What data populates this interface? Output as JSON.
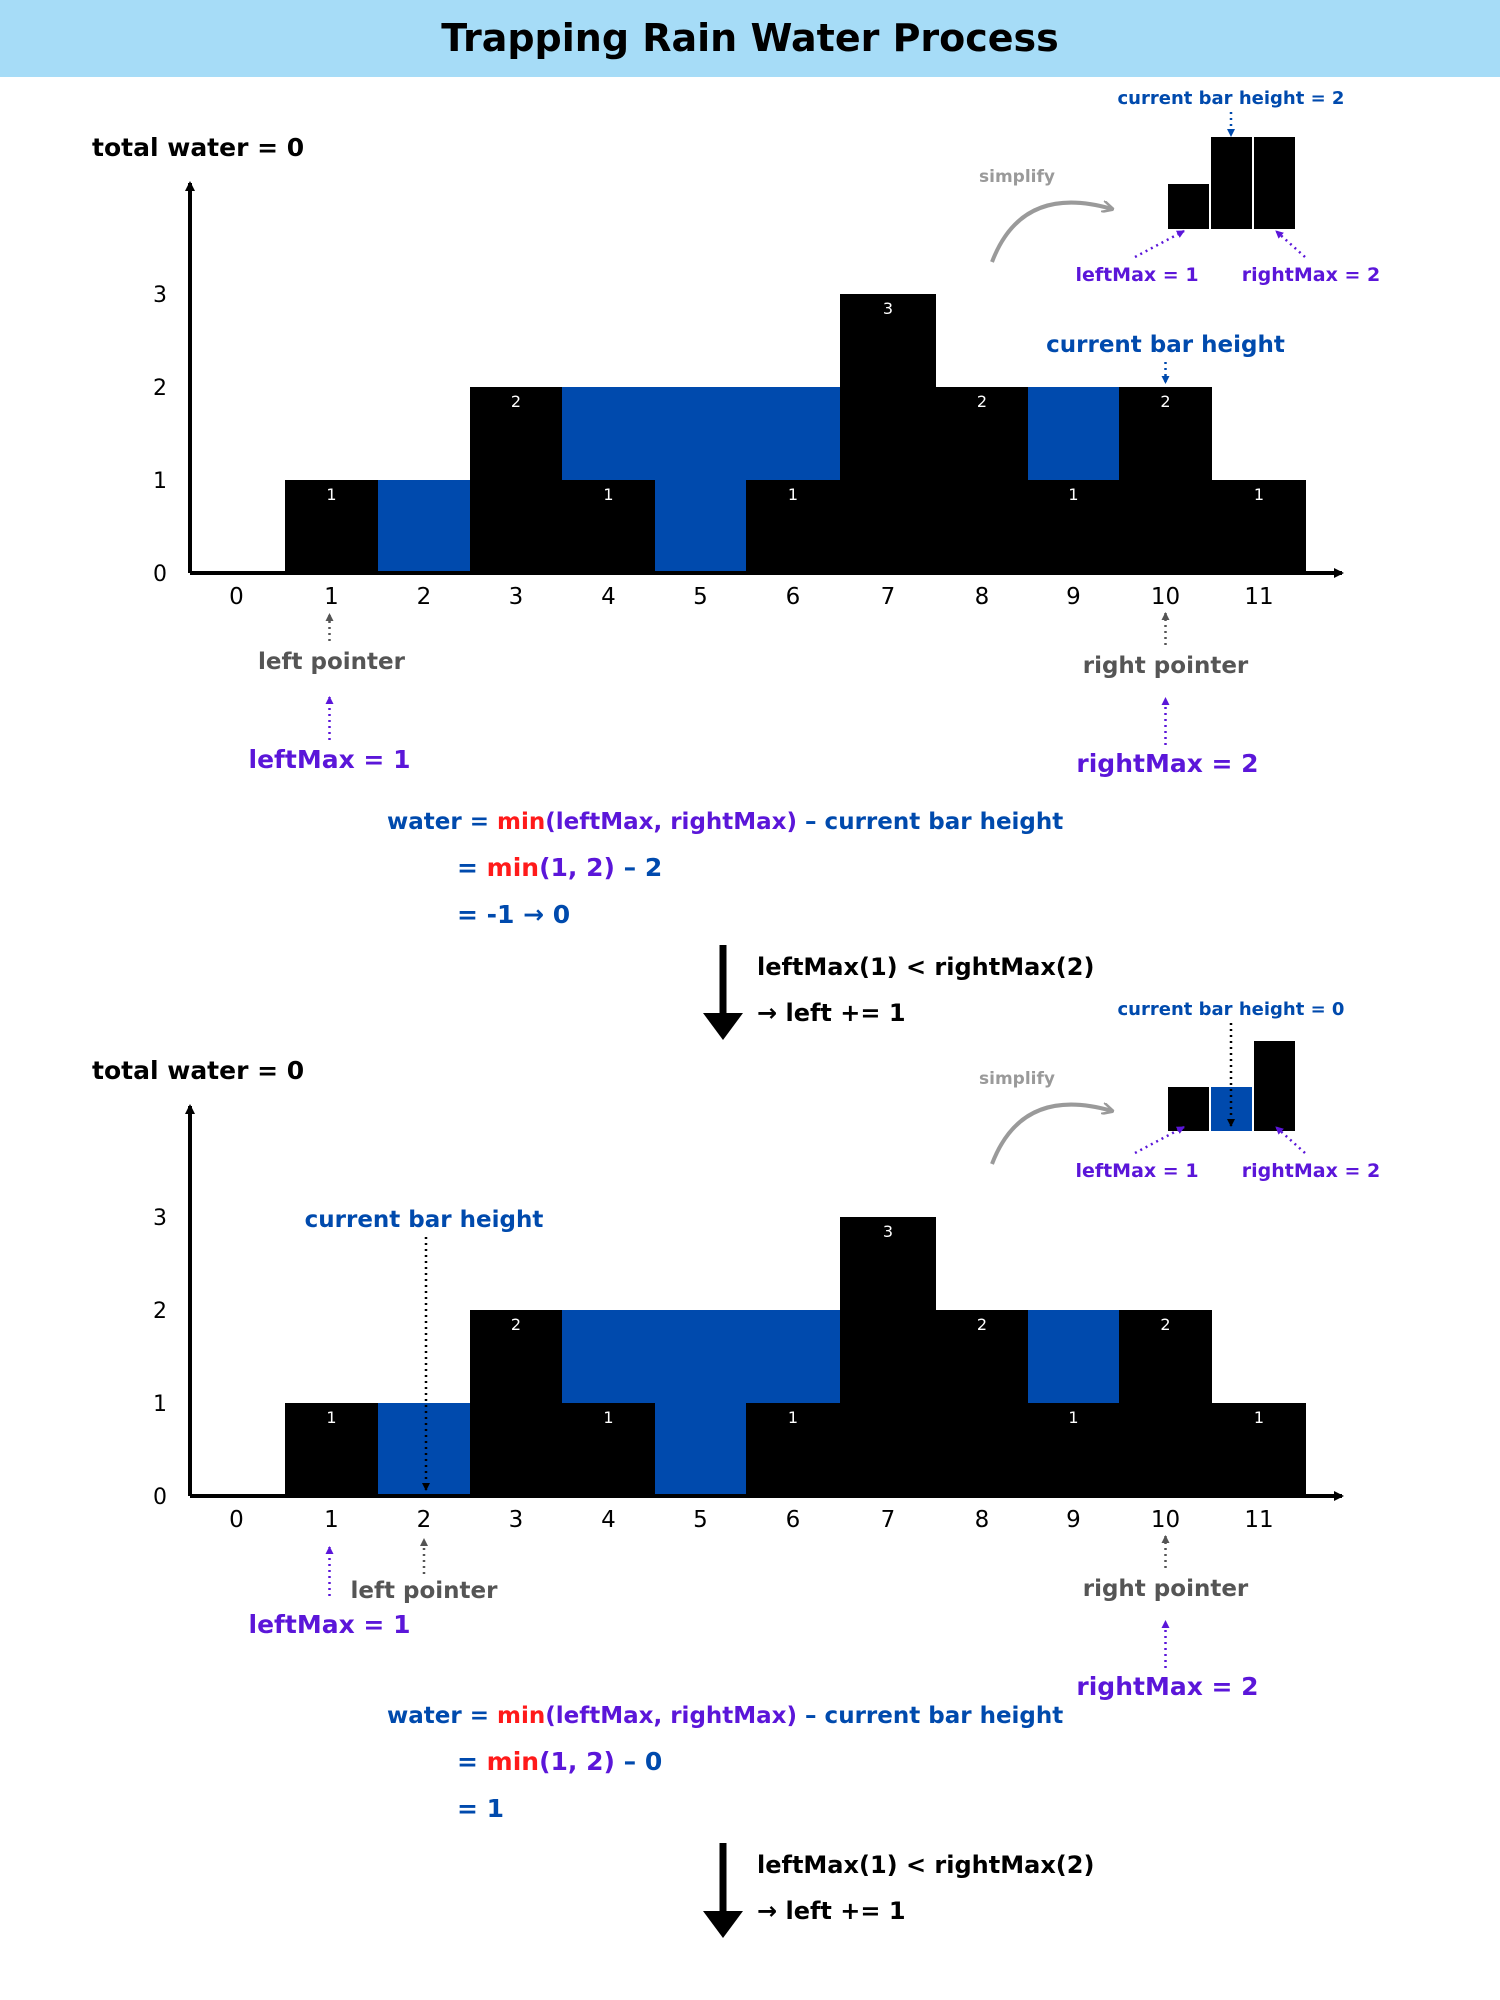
{
  "title": "Trapping Rain Water Process",
  "colors": {
    "header_bg": "#a6dcf7",
    "bar": "#000000",
    "water": "#004aad",
    "formula_blue": "#004aad",
    "formula_purple": "#5b16d9",
    "formula_red": "#ff1a1a",
    "pointer_gray": "#555555",
    "simplify_gray": "#9a9a9a"
  },
  "steps": [
    {
      "total_water_text": "total water = 0",
      "chart_data": {
        "type": "bar",
        "categories": [
          "0",
          "1",
          "2",
          "3",
          "4",
          "5",
          "6",
          "7",
          "8",
          "9",
          "10",
          "11"
        ],
        "heights": [
          0,
          1,
          0,
          2,
          1,
          0,
          1,
          3,
          2,
          1,
          2,
          1
        ],
        "water": [
          0,
          0,
          1,
          0,
          1,
          2,
          1,
          0,
          0,
          1,
          0,
          0
        ],
        "bar_labels": [
          "",
          "1",
          "",
          "2",
          "1",
          "",
          "1",
          "3",
          "2",
          "1",
          "2",
          "1"
        ],
        "y_ticks": [
          "0",
          "1",
          "2",
          "3"
        ],
        "ylim": [
          0,
          3
        ],
        "water_text_fill": [
          false,
          false,
          true,
          false,
          true,
          true,
          true,
          false,
          false,
          true,
          false,
          false
        ]
      },
      "current_bar_label": "current bar height",
      "current_index": 10,
      "left_pointer_label": "left pointer",
      "left_index": 1,
      "right_pointer_label": "right pointer",
      "right_index": 10,
      "left_max_label": "leftMax = 1",
      "right_max_label": "rightMax = 2",
      "simplify": {
        "label": "simplify",
        "current_label": "current bar height = 2",
        "left_max_label": "leftMax = 1",
        "right_max_label": "rightMax = 2",
        "bars": [
          1,
          2,
          2
        ],
        "water": [
          0,
          0,
          0
        ],
        "current_bar_index": 1
      },
      "formula": {
        "line1_prefix": "water = ",
        "line1_min": "min",
        "line1_args": "(leftMax, rightMax)",
        "line1_suffix": " – current bar height",
        "line2_prefix": "= ",
        "line2_min": "min",
        "line2_args": "(1, 2)",
        "line2_suffix": " – 2",
        "line3": "= -1 → 0"
      },
      "decision": {
        "line1": "leftMax(1) < rightMax(2)",
        "line2": "→ left += 1"
      }
    },
    {
      "total_water_text": "total water = 0",
      "chart_data": {
        "type": "bar",
        "categories": [
          "0",
          "1",
          "2",
          "3",
          "4",
          "5",
          "6",
          "7",
          "8",
          "9",
          "10",
          "11"
        ],
        "heights": [
          0,
          1,
          0,
          2,
          1,
          0,
          1,
          3,
          2,
          1,
          2,
          1
        ],
        "water": [
          0,
          0,
          1,
          0,
          1,
          2,
          1,
          0,
          0,
          1,
          0,
          0
        ],
        "bar_labels": [
          "",
          "1",
          "",
          "2",
          "1",
          "",
          "1",
          "3",
          "2",
          "1",
          "2",
          "1"
        ],
        "y_ticks": [
          "0",
          "1",
          "2",
          "3"
        ],
        "ylim": [
          0,
          3
        ]
      },
      "current_bar_label": "current bar height",
      "current_index": 2,
      "left_pointer_label": "left pointer",
      "left_index": 2,
      "right_pointer_label": "right pointer",
      "right_index": 10,
      "left_max_label": "leftMax = 1",
      "right_max_label": "rightMax = 2",
      "simplify": {
        "label": "simplify",
        "current_label": "current bar height = 0",
        "left_max_label": "leftMax = 1",
        "right_max_label": "rightMax = 2",
        "bars": [
          1,
          0,
          2
        ],
        "water": [
          0,
          1,
          0
        ],
        "current_bar_index": 1
      },
      "formula": {
        "line1_prefix": "water = ",
        "line1_min": "min",
        "line1_args": "(leftMax, rightMax)",
        "line1_suffix": " – current bar height",
        "line2_prefix": "= ",
        "line2_min": "min",
        "line2_args": "(1, 2)",
        "line2_suffix": " – 0",
        "line3": "= 1"
      },
      "decision": {
        "line1": "leftMax(1) < rightMax(2)",
        "line2": "→ left += 1"
      }
    }
  ]
}
